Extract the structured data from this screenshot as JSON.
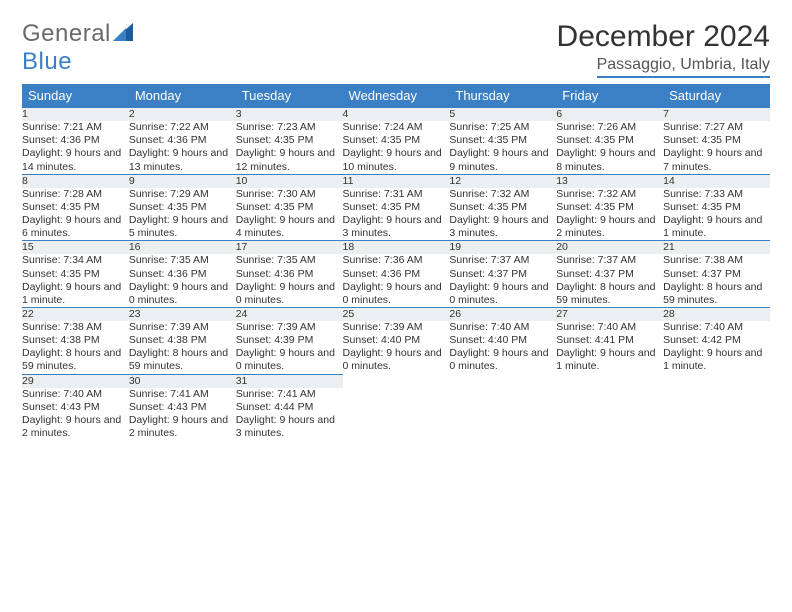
{
  "brand": {
    "part1": "General",
    "part2": "Blue"
  },
  "title": "December 2024",
  "location": "Passaggio, Umbria, Italy",
  "colors": {
    "header_bg": "#3b7fc4",
    "header_text": "#ffffff",
    "daynum_bg": "#eceff1",
    "border": "#3b7fc4",
    "text": "#333333"
  },
  "day_headers": [
    "Sunday",
    "Monday",
    "Tuesday",
    "Wednesday",
    "Thursday",
    "Friday",
    "Saturday"
  ],
  "weeks": [
    [
      {
        "n": "1",
        "sr": "Sunrise: 7:21 AM",
        "ss": "Sunset: 4:36 PM",
        "dl": "Daylight: 9 hours and 14 minutes."
      },
      {
        "n": "2",
        "sr": "Sunrise: 7:22 AM",
        "ss": "Sunset: 4:36 PM",
        "dl": "Daylight: 9 hours and 13 minutes."
      },
      {
        "n": "3",
        "sr": "Sunrise: 7:23 AM",
        "ss": "Sunset: 4:35 PM",
        "dl": "Daylight: 9 hours and 12 minutes."
      },
      {
        "n": "4",
        "sr": "Sunrise: 7:24 AM",
        "ss": "Sunset: 4:35 PM",
        "dl": "Daylight: 9 hours and 10 minutes."
      },
      {
        "n": "5",
        "sr": "Sunrise: 7:25 AM",
        "ss": "Sunset: 4:35 PM",
        "dl": "Daylight: 9 hours and 9 minutes."
      },
      {
        "n": "6",
        "sr": "Sunrise: 7:26 AM",
        "ss": "Sunset: 4:35 PM",
        "dl": "Daylight: 9 hours and 8 minutes."
      },
      {
        "n": "7",
        "sr": "Sunrise: 7:27 AM",
        "ss": "Sunset: 4:35 PM",
        "dl": "Daylight: 9 hours and 7 minutes."
      }
    ],
    [
      {
        "n": "8",
        "sr": "Sunrise: 7:28 AM",
        "ss": "Sunset: 4:35 PM",
        "dl": "Daylight: 9 hours and 6 minutes."
      },
      {
        "n": "9",
        "sr": "Sunrise: 7:29 AM",
        "ss": "Sunset: 4:35 PM",
        "dl": "Daylight: 9 hours and 5 minutes."
      },
      {
        "n": "10",
        "sr": "Sunrise: 7:30 AM",
        "ss": "Sunset: 4:35 PM",
        "dl": "Daylight: 9 hours and 4 minutes."
      },
      {
        "n": "11",
        "sr": "Sunrise: 7:31 AM",
        "ss": "Sunset: 4:35 PM",
        "dl": "Daylight: 9 hours and 3 minutes."
      },
      {
        "n": "12",
        "sr": "Sunrise: 7:32 AM",
        "ss": "Sunset: 4:35 PM",
        "dl": "Daylight: 9 hours and 3 minutes."
      },
      {
        "n": "13",
        "sr": "Sunrise: 7:32 AM",
        "ss": "Sunset: 4:35 PM",
        "dl": "Daylight: 9 hours and 2 minutes."
      },
      {
        "n": "14",
        "sr": "Sunrise: 7:33 AM",
        "ss": "Sunset: 4:35 PM",
        "dl": "Daylight: 9 hours and 1 minute."
      }
    ],
    [
      {
        "n": "15",
        "sr": "Sunrise: 7:34 AM",
        "ss": "Sunset: 4:35 PM",
        "dl": "Daylight: 9 hours and 1 minute."
      },
      {
        "n": "16",
        "sr": "Sunrise: 7:35 AM",
        "ss": "Sunset: 4:36 PM",
        "dl": "Daylight: 9 hours and 0 minutes."
      },
      {
        "n": "17",
        "sr": "Sunrise: 7:35 AM",
        "ss": "Sunset: 4:36 PM",
        "dl": "Daylight: 9 hours and 0 minutes."
      },
      {
        "n": "18",
        "sr": "Sunrise: 7:36 AM",
        "ss": "Sunset: 4:36 PM",
        "dl": "Daylight: 9 hours and 0 minutes."
      },
      {
        "n": "19",
        "sr": "Sunrise: 7:37 AM",
        "ss": "Sunset: 4:37 PM",
        "dl": "Daylight: 9 hours and 0 minutes."
      },
      {
        "n": "20",
        "sr": "Sunrise: 7:37 AM",
        "ss": "Sunset: 4:37 PM",
        "dl": "Daylight: 8 hours and 59 minutes."
      },
      {
        "n": "21",
        "sr": "Sunrise: 7:38 AM",
        "ss": "Sunset: 4:37 PM",
        "dl": "Daylight: 8 hours and 59 minutes."
      }
    ],
    [
      {
        "n": "22",
        "sr": "Sunrise: 7:38 AM",
        "ss": "Sunset: 4:38 PM",
        "dl": "Daylight: 8 hours and 59 minutes."
      },
      {
        "n": "23",
        "sr": "Sunrise: 7:39 AM",
        "ss": "Sunset: 4:38 PM",
        "dl": "Daylight: 8 hours and 59 minutes."
      },
      {
        "n": "24",
        "sr": "Sunrise: 7:39 AM",
        "ss": "Sunset: 4:39 PM",
        "dl": "Daylight: 9 hours and 0 minutes."
      },
      {
        "n": "25",
        "sr": "Sunrise: 7:39 AM",
        "ss": "Sunset: 4:40 PM",
        "dl": "Daylight: 9 hours and 0 minutes."
      },
      {
        "n": "26",
        "sr": "Sunrise: 7:40 AM",
        "ss": "Sunset: 4:40 PM",
        "dl": "Daylight: 9 hours and 0 minutes."
      },
      {
        "n": "27",
        "sr": "Sunrise: 7:40 AM",
        "ss": "Sunset: 4:41 PM",
        "dl": "Daylight: 9 hours and 1 minute."
      },
      {
        "n": "28",
        "sr": "Sunrise: 7:40 AM",
        "ss": "Sunset: 4:42 PM",
        "dl": "Daylight: 9 hours and 1 minute."
      }
    ],
    [
      {
        "n": "29",
        "sr": "Sunrise: 7:40 AM",
        "ss": "Sunset: 4:43 PM",
        "dl": "Daylight: 9 hours and 2 minutes."
      },
      {
        "n": "30",
        "sr": "Sunrise: 7:41 AM",
        "ss": "Sunset: 4:43 PM",
        "dl": "Daylight: 9 hours and 2 minutes."
      },
      {
        "n": "31",
        "sr": "Sunrise: 7:41 AM",
        "ss": "Sunset: 4:44 PM",
        "dl": "Daylight: 9 hours and 3 minutes."
      },
      null,
      null,
      null,
      null
    ]
  ]
}
